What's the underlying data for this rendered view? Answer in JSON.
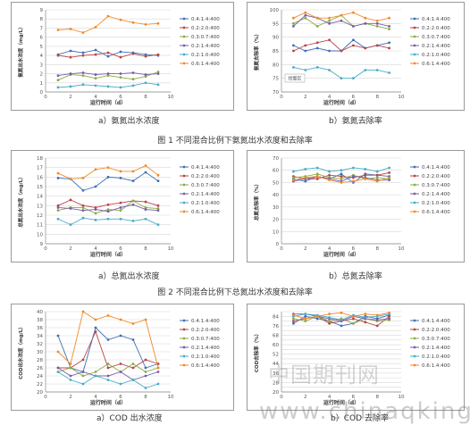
{
  "figure_captions": [
    "图 1 不同混合比例下氨氮出水浓度和去除率",
    "图 2 不同混合比例下总氮出水浓度和去除率"
  ],
  "subcaptions": [
    "a）氨氮出水浓度",
    "b）氨氮去除率",
    "a）总氮出水浓度",
    "b）总氮去除率",
    "a）COD 出水浓度",
    "b）COD 去除率"
  ],
  "watermark": "中国期刊网",
  "watermark_url": "www.chinaqking.com",
  "legend_labels": [
    "0.4:1.4:400",
    "0.2:2.0:400",
    "0.3:0.7:400",
    "0.2:1.4:400",
    "0.2:1.0:400",
    "0.6:1.4:400"
  ],
  "series_colors": [
    "#3f6fb5",
    "#b84545",
    "#8aab45",
    "#7a5ca8",
    "#4aacc6",
    "#f08a2a"
  ],
  "chart_data": [
    {
      "type": "line",
      "ylabel": "氨氮出水浓度（mg/L）",
      "xlabel": "运行时间（d）",
      "xlim": [
        0,
        10
      ],
      "ylim": [
        0,
        9
      ],
      "xticks": [
        0,
        2,
        4,
        6,
        8,
        10
      ],
      "yticks": [
        0,
        1,
        2,
        3,
        4,
        5,
        6,
        7,
        8,
        9
      ],
      "grid": true,
      "legend": "right",
      "series": [
        {
          "name": "0.4:1.4:400",
          "x": [
            1,
            2,
            3,
            4,
            5,
            6,
            7,
            8,
            9
          ],
          "values": [
            4.1,
            4.5,
            4.3,
            4.6,
            3.9,
            4.4,
            4.3,
            4.1,
            4.0
          ]
        },
        {
          "name": "0.2:2.0:400",
          "x": [
            1,
            2,
            3,
            4,
            5,
            6,
            7,
            8,
            9
          ],
          "values": [
            4.0,
            3.8,
            4.0,
            4.1,
            4.3,
            3.8,
            4.2,
            3.9,
            4.1
          ]
        },
        {
          "name": "0.3:0.7:400",
          "x": [
            1,
            2,
            3,
            4,
            5,
            6,
            7,
            8,
            9
          ],
          "values": [
            1.3,
            1.9,
            1.8,
            1.5,
            1.8,
            1.6,
            1.4,
            1.7,
            2.2
          ]
        },
        {
          "name": "0.2:1.4:400",
          "x": [
            1,
            2,
            3,
            4,
            5,
            6,
            7,
            8,
            9
          ],
          "values": [
            1.8,
            2.0,
            2.1,
            1.9,
            2.0,
            2.0,
            2.1,
            1.9,
            2.0
          ]
        },
        {
          "name": "0.2:1.0:400",
          "x": [
            1,
            2,
            3,
            4,
            5,
            6,
            7,
            8,
            9
          ],
          "values": [
            0.5,
            0.6,
            0.8,
            0.7,
            0.6,
            0.5,
            0.7,
            1.0,
            0.8
          ]
        },
        {
          "name": "0.6:1.4:400",
          "x": [
            1,
            2,
            3,
            4,
            5,
            6,
            7,
            8,
            9
          ],
          "values": [
            6.8,
            6.9,
            6.5,
            7.1,
            8.3,
            7.9,
            7.6,
            7.4,
            7.5
          ]
        }
      ]
    },
    {
      "type": "line",
      "ylabel": "氨氮去除率（%）",
      "xlabel": "运行时间（d）",
      "xlim": [
        0,
        10
      ],
      "ylim": [
        70,
        100
      ],
      "xticks": [
        0,
        2,
        4,
        6,
        8,
        10
      ],
      "yticks": [
        70,
        75,
        80,
        85,
        90,
        95,
        100
      ],
      "grid": true,
      "legend": "right",
      "annotation": "绘图区",
      "series": [
        {
          "name": "0.4:1.4:400",
          "x": [
            1,
            2,
            3,
            4,
            5,
            6,
            7,
            8,
            9
          ],
          "values": [
            87,
            85,
            86,
            85,
            85,
            89,
            86,
            87,
            88
          ]
        },
        {
          "name": "0.2:2.0:400",
          "x": [
            1,
            2,
            3,
            4,
            5,
            6,
            7,
            8,
            9
          ],
          "values": [
            85,
            87,
            88,
            89,
            85,
            87,
            86,
            87,
            86
          ]
        },
        {
          "name": "0.3:0.7:400",
          "x": [
            1,
            2,
            3,
            4,
            5,
            6,
            7,
            8,
            9
          ],
          "values": [
            95,
            97,
            94,
            96,
            98,
            94,
            95,
            94,
            93
          ]
        },
        {
          "name": "0.2:1.4:400",
          "x": [
            1,
            2,
            3,
            4,
            5,
            6,
            7,
            8,
            9
          ],
          "values": [
            94,
            98,
            97,
            95,
            96,
            94,
            95,
            95,
            94
          ]
        },
        {
          "name": "0.2:1.0:400",
          "x": [
            1,
            2,
            3,
            4,
            5,
            6,
            7,
            8,
            9
          ],
          "values": [
            79,
            78,
            79,
            78,
            75,
            75,
            78,
            78,
            77
          ]
        },
        {
          "name": "0.6:1.4:400",
          "x": [
            1,
            2,
            3,
            4,
            5,
            6,
            7,
            8,
            9
          ],
          "values": [
            97,
            99,
            97,
            97,
            98,
            99,
            97,
            96,
            97
          ]
        }
      ]
    },
    {
      "type": "line",
      "ylabel": "总氮出水浓度（mg/L）",
      "xlabel": "运行时间（d）",
      "xlim": [
        0,
        10
      ],
      "ylim": [
        9,
        18
      ],
      "xticks": [
        0,
        2,
        4,
        6,
        8,
        10
      ],
      "yticks": [
        9,
        10,
        11,
        12,
        13,
        14,
        15,
        16,
        17,
        18
      ],
      "grid": true,
      "legend": "right",
      "series": [
        {
          "name": "0.4:1.4:400",
          "x": [
            1,
            2,
            3,
            4,
            5,
            6,
            7,
            8,
            9
          ],
          "values": [
            15.9,
            15.8,
            14.6,
            15.0,
            16.0,
            15.9,
            15.6,
            16.5,
            15.6
          ]
        },
        {
          "name": "0.2:2.0:400",
          "x": [
            1,
            2,
            3,
            4,
            5,
            6,
            7,
            8,
            9
          ],
          "values": [
            13.0,
            13.6,
            13.0,
            12.8,
            13.1,
            13.3,
            13.5,
            13.4,
            13.0
          ]
        },
        {
          "name": "0.3:0.7:400",
          "x": [
            1,
            2,
            3,
            4,
            5,
            6,
            7,
            8,
            9
          ],
          "values": [
            12.5,
            12.8,
            12.8,
            12.2,
            12.6,
            12.5,
            13.5,
            12.8,
            12.7
          ]
        },
        {
          "name": "0.2:1.4:400",
          "x": [
            1,
            2,
            3,
            4,
            5,
            6,
            7,
            8,
            9
          ],
          "values": [
            12.8,
            12.7,
            12.5,
            12.6,
            12.4,
            12.8,
            13.1,
            12.6,
            12.5
          ]
        },
        {
          "name": "0.2:1.0:400",
          "x": [
            1,
            2,
            3,
            4,
            5,
            6,
            7,
            8,
            9
          ],
          "values": [
            11.6,
            11.0,
            11.7,
            11.5,
            11.6,
            11.6,
            11.4,
            11.6,
            11.0
          ]
        },
        {
          "name": "0.6:1.4:400",
          "x": [
            1,
            2,
            3,
            4,
            5,
            6,
            7,
            8,
            9
          ],
          "values": [
            16.4,
            15.8,
            15.9,
            16.8,
            17.0,
            16.6,
            16.6,
            17.2,
            16.2
          ]
        }
      ]
    },
    {
      "type": "line",
      "ylabel": "总氮去除率（%）",
      "xlabel": "运行时间（d）",
      "xlim": [
        0,
        10
      ],
      "ylim": [
        0,
        70
      ],
      "xticks": [
        0,
        2,
        4,
        6,
        8,
        10
      ],
      "yticks": [
        0,
        10,
        20,
        30,
        40,
        50,
        60,
        70
      ],
      "grid": true,
      "legend": "right",
      "series": [
        {
          "name": "0.4:1.4:400",
          "x": [
            1,
            2,
            3,
            4,
            5,
            6,
            7,
            8,
            9
          ],
          "values": [
            53,
            51,
            55,
            53,
            57,
            50,
            57,
            56,
            55
          ]
        },
        {
          "name": "0.2:2.0:400",
          "x": [
            1,
            2,
            3,
            4,
            5,
            6,
            7,
            8,
            9
          ],
          "values": [
            55,
            53,
            53,
            56,
            55,
            54,
            56,
            56,
            58
          ]
        },
        {
          "name": "0.3:0.7:400",
          "x": [
            1,
            2,
            3,
            4,
            5,
            6,
            7,
            8,
            9
          ],
          "values": [
            54,
            55,
            57,
            54,
            53,
            56,
            53,
            54,
            53
          ]
        },
        {
          "name": "0.2:1.4:400",
          "x": [
            1,
            2,
            3,
            4,
            5,
            6,
            7,
            8,
            9
          ],
          "values": [
            51,
            53,
            55,
            53,
            51,
            55,
            54,
            52,
            52
          ]
        },
        {
          "name": "0.2:1.0:400",
          "x": [
            1,
            2,
            3,
            4,
            5,
            6,
            7,
            8,
            9
          ],
          "values": [
            59,
            61,
            62,
            59,
            60,
            62,
            61,
            59,
            62
          ]
        },
        {
          "name": "0.6:1.4:400",
          "x": [
            1,
            2,
            3,
            4,
            5,
            6,
            7,
            8,
            9
          ],
          "values": [
            52,
            54,
            55,
            52,
            50,
            51,
            53,
            51,
            54
          ]
        }
      ]
    },
    {
      "type": "line",
      "ylabel": "COD出水浓度（mg/L）",
      "xlabel": "运行时间（d）",
      "xlim": [
        0,
        10
      ],
      "ylim": [
        20,
        40
      ],
      "xticks": [
        0,
        2,
        4,
        6,
        8,
        10
      ],
      "yticks": [
        20,
        22,
        24,
        26,
        28,
        30,
        32,
        34,
        36,
        38,
        40
      ],
      "grid": true,
      "legend": "right",
      "series": [
        {
          "name": "0.4:1.4:400",
          "x": [
            1,
            2,
            3,
            4,
            5,
            6,
            7,
            8,
            9
          ],
          "values": [
            34,
            26,
            25,
            36,
            33,
            34,
            33,
            26,
            27
          ]
        },
        {
          "name": "0.2:2.0:400",
          "x": [
            1,
            2,
            3,
            4,
            5,
            6,
            7,
            8,
            9
          ],
          "values": [
            26,
            26,
            28,
            35,
            26,
            27,
            26,
            28,
            27
          ]
        },
        {
          "name": "0.3:0.7:400",
          "x": [
            1,
            2,
            3,
            4,
            5,
            6,
            7,
            8,
            9
          ],
          "values": [
            25,
            26,
            24,
            25,
            27,
            25,
            27,
            25,
            26
          ]
        },
        {
          "name": "0.2:1.4:400",
          "x": [
            1,
            2,
            3,
            4,
            5,
            6,
            7,
            8,
            9
          ],
          "values": [
            26,
            24,
            25,
            24,
            24,
            25,
            23,
            24,
            25
          ]
        },
        {
          "name": "0.2:1.0:400",
          "x": [
            1,
            2,
            3,
            4,
            5,
            6,
            7,
            8,
            9
          ],
          "values": [
            25,
            23,
            22,
            24,
            23,
            22,
            23,
            21,
            22
          ]
        },
        {
          "name": "0.6:1.4:400",
          "x": [
            1,
            2,
            3,
            4,
            5,
            6,
            7,
            8,
            9
          ],
          "values": [
            30,
            27,
            40,
            38,
            39,
            38,
            37,
            38,
            26
          ]
        }
      ]
    },
    {
      "type": "line",
      "ylabel": "COD去除率（%）",
      "xlabel": "运行时间（d）",
      "xlim": [
        0,
        10
      ],
      "ylim": [
        20,
        88
      ],
      "xticks": [
        0,
        2,
        4,
        6,
        8,
        10
      ],
      "yticks": [
        20,
        24,
        28,
        32,
        36,
        40,
        44,
        48,
        52,
        56,
        60,
        64,
        68,
        72,
        76,
        80,
        84,
        88
      ],
      "grid": true,
      "legend": "right",
      "series": [
        {
          "name": "0.4:1.4:400",
          "x": [
            1,
            2,
            3,
            4,
            5,
            6,
            7,
            8,
            9
          ],
          "values": [
            78,
            84,
            82,
            80,
            76,
            78,
            84,
            82,
            85
          ]
        },
        {
          "name": "0.2:2.0:400",
          "x": [
            1,
            2,
            3,
            4,
            5,
            6,
            7,
            8,
            9
          ],
          "values": [
            80,
            82,
            84,
            78,
            80,
            82,
            79,
            76,
            84
          ]
        },
        {
          "name": "0.3:0.7:400",
          "x": [
            1,
            2,
            3,
            4,
            5,
            6,
            7,
            8,
            9
          ],
          "values": [
            82,
            80,
            84,
            80,
            82,
            78,
            82,
            80,
            81
          ]
        },
        {
          "name": "0.2:1.4:400",
          "x": [
            1,
            2,
            3,
            4,
            5,
            6,
            7,
            8,
            9
          ],
          "values": [
            86,
            86,
            84,
            82,
            80,
            84,
            82,
            81,
            82
          ]
        },
        {
          "name": "0.2:1.0:400",
          "x": [
            1,
            2,
            3,
            4,
            5,
            6,
            7,
            8,
            9
          ],
          "values": [
            84,
            86,
            85,
            83,
            81,
            85,
            83,
            84,
            86
          ]
        },
        {
          "name": "0.6:1.4:400",
          "x": [
            1,
            2,
            3,
            4,
            5,
            6,
            7,
            8,
            9
          ],
          "values": [
            85,
            82,
            84,
            86,
            87,
            84,
            86,
            85,
            87
          ]
        }
      ]
    }
  ]
}
